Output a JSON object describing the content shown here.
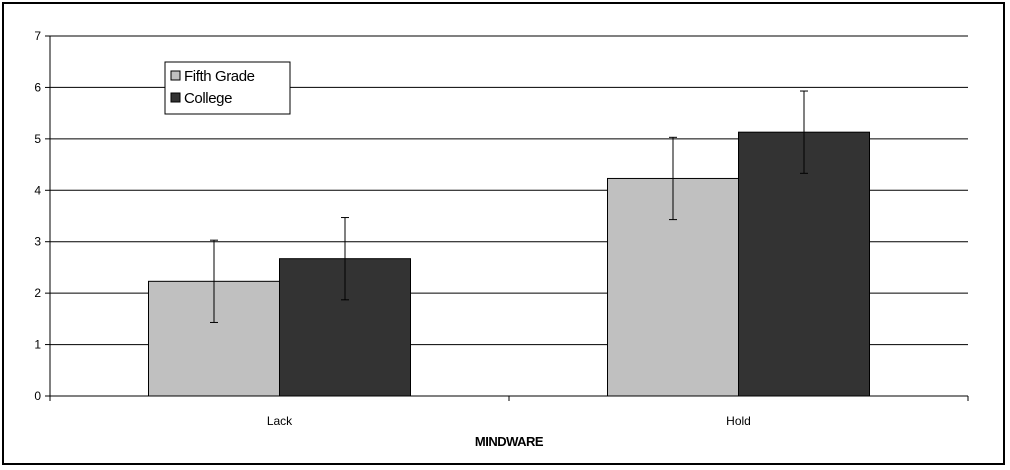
{
  "chart_data": {
    "type": "bar",
    "title": "",
    "xlabel": "MINDWARE",
    "ylabel": "",
    "ylim": [
      0,
      7
    ],
    "yticks": [
      0,
      1,
      2,
      3,
      4,
      5,
      6,
      7
    ],
    "grid": true,
    "categories": [
      "Lack",
      "Hold"
    ],
    "series": [
      {
        "name": "Fifth Grade",
        "color": "#c0c0c0",
        "values": [
          2.23,
          4.23
        ],
        "error_low": [
          1.43,
          3.43
        ],
        "error_high": [
          3.03,
          5.03
        ]
      },
      {
        "name": "College",
        "color": "#333333",
        "values": [
          2.67,
          5.13
        ],
        "error_low": [
          1.87,
          4.33
        ],
        "error_high": [
          3.47,
          5.93
        ]
      }
    ],
    "legend": {
      "placement": "top-left",
      "items": [
        "Fifth Grade",
        "College"
      ]
    }
  }
}
